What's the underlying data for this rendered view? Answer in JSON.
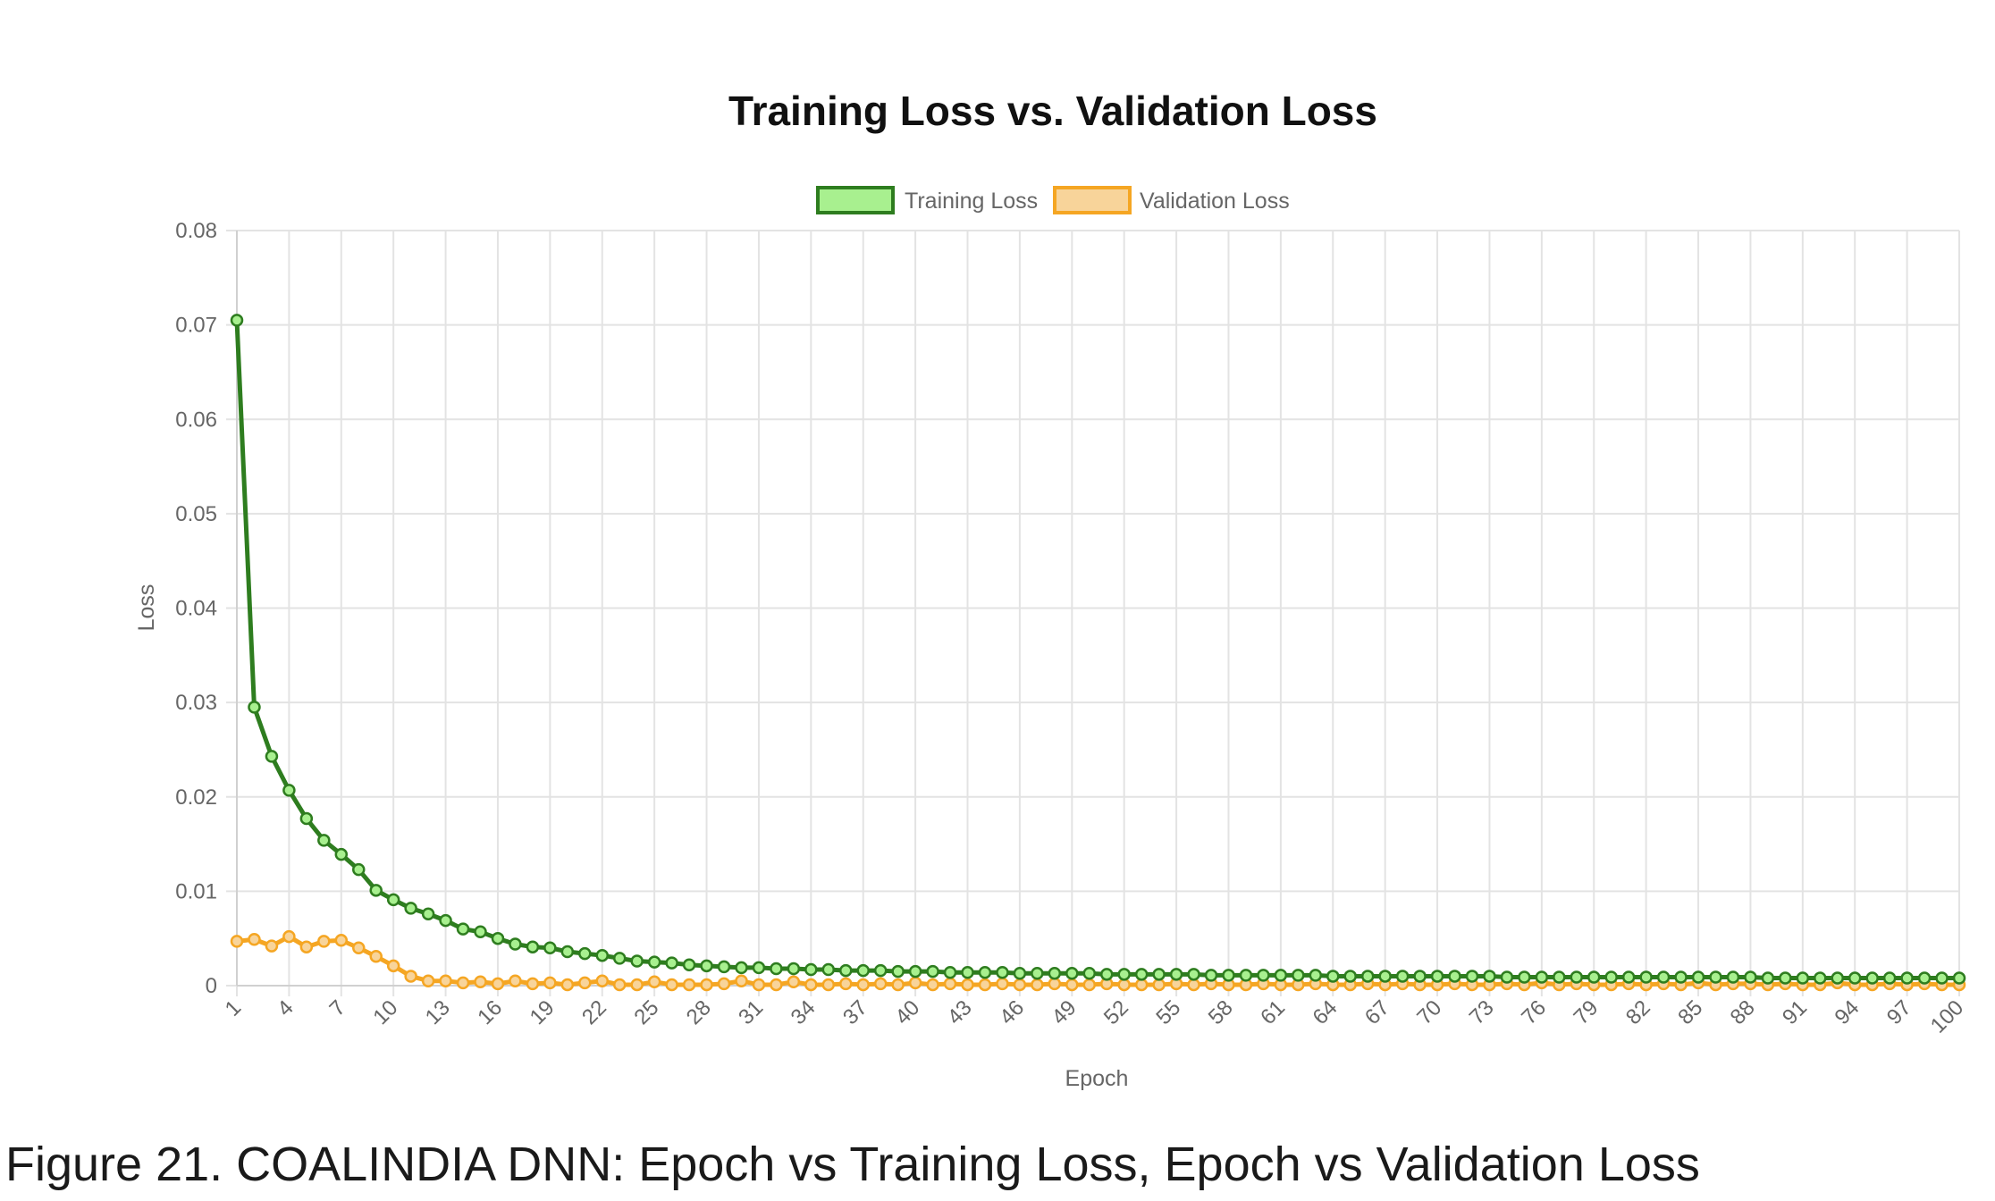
{
  "chart_data": {
    "type": "line",
    "title": "Training Loss vs. Validation Loss",
    "xlabel": "Epoch",
    "ylabel": "Loss",
    "ylim": [
      0,
      0.08
    ],
    "yticks": [
      "0",
      "0.01",
      "0.02",
      "0.03",
      "0.04",
      "0.05",
      "0.06",
      "0.07",
      "0.08"
    ],
    "xticks": [
      "1",
      "4",
      "7",
      "10",
      "13",
      "16",
      "19",
      "22",
      "25",
      "28",
      "31",
      "34",
      "37",
      "40",
      "43",
      "46",
      "49",
      "52",
      "55",
      "58",
      "61",
      "64",
      "67",
      "70",
      "73",
      "76",
      "79",
      "82",
      "85",
      "88",
      "91",
      "94",
      "97",
      "100"
    ],
    "grid": true,
    "legend_position": "top-center",
    "series": [
      {
        "name": "Training Loss",
        "line_color": "#2e7d1f",
        "fill_color": "#a8f08f",
        "values": [
          0.0705,
          0.0295,
          0.0243,
          0.0207,
          0.0177,
          0.0154,
          0.0139,
          0.0123,
          0.0101,
          0.0091,
          0.0082,
          0.0076,
          0.0069,
          0.006,
          0.0057,
          0.005,
          0.0044,
          0.0041,
          0.004,
          0.0036,
          0.0034,
          0.0032,
          0.0029,
          0.0026,
          0.0025,
          0.0024,
          0.0022,
          0.0021,
          0.002,
          0.0019,
          0.0019,
          0.0018,
          0.0018,
          0.0017,
          0.0017,
          0.0016,
          0.0016,
          0.0016,
          0.0015,
          0.0015,
          0.0015,
          0.0014,
          0.0014,
          0.0014,
          0.0014,
          0.0013,
          0.0013,
          0.0013,
          0.0013,
          0.0013,
          0.0012,
          0.0012,
          0.0012,
          0.0012,
          0.0012,
          0.0012,
          0.0011,
          0.0011,
          0.0011,
          0.0011,
          0.0011,
          0.0011,
          0.0011,
          0.001,
          0.001,
          0.001,
          0.001,
          0.001,
          0.001,
          0.001,
          0.001,
          0.001,
          0.001,
          0.0009,
          0.0009,
          0.0009,
          0.0009,
          0.0009,
          0.0009,
          0.0009,
          0.0009,
          0.0009,
          0.0009,
          0.0009,
          0.0009,
          0.0009,
          0.0009,
          0.0009,
          0.0008,
          0.0008,
          0.0008,
          0.0008,
          0.0008,
          0.0008,
          0.0008,
          0.0008,
          0.0008,
          0.0008,
          0.0008,
          0.0008
        ]
      },
      {
        "name": "Validation Loss",
        "line_color": "#f5a623",
        "fill_color": "#f8d49a",
        "values": [
          0.0047,
          0.0049,
          0.0042,
          0.0052,
          0.0041,
          0.0047,
          0.0048,
          0.004,
          0.0031,
          0.0021,
          0.001,
          0.0005,
          0.0005,
          0.0003,
          0.0004,
          0.0002,
          0.0005,
          0.0002,
          0.0003,
          0.0001,
          0.0003,
          0.0005,
          0.0001,
          0.0001,
          0.0004,
          0.0001,
          0.0001,
          0.0001,
          0.0002,
          0.0005,
          0.0001,
          0.0001,
          0.0004,
          0.0001,
          0.0001,
          0.0002,
          0.0001,
          0.0002,
          0.0001,
          0.0003,
          0.0001,
          0.0002,
          0.0001,
          0.0001,
          0.0002,
          0.0001,
          0.0001,
          0.0002,
          0.0001,
          0.0001,
          0.0002,
          0.0001,
          0.0001,
          0.0001,
          0.0002,
          0.0001,
          0.0002,
          0.0001,
          0.0001,
          0.0002,
          0.0001,
          0.0001,
          0.0002,
          0.0001,
          0.0001,
          0.0002,
          0.0001,
          0.0002,
          0.0001,
          0.0001,
          0.0002,
          0.0001,
          0.0001,
          0.0002,
          0.0001,
          0.0003,
          0.0001,
          0.0002,
          0.0001,
          0.0001,
          0.0002,
          0.0001,
          0.0002,
          0.0001,
          0.0003,
          0.0001,
          0.0002,
          0.0002,
          0.0001,
          0.0002,
          0.0001,
          0.0001,
          0.0003,
          0.0001,
          0.0001,
          0.0002,
          0.0001,
          0.0002,
          0.0001,
          0.0001
        ]
      }
    ]
  },
  "caption": "Figure 21. COALINDIA DNN: Epoch vs Training Loss, Epoch vs Validation Loss"
}
